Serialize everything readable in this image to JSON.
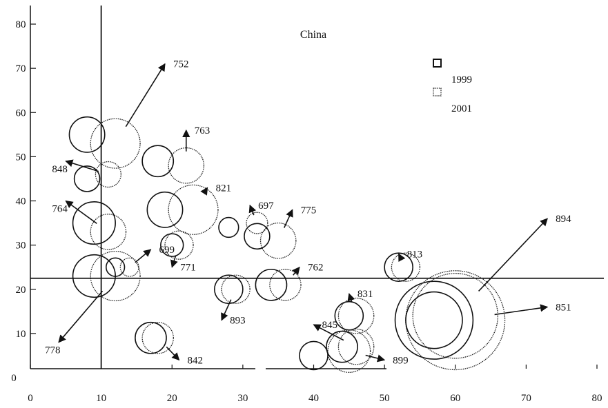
{
  "chart_data": {
    "type": "bubble",
    "title": "China",
    "xlabel": "",
    "ylabel": "",
    "xlim": [
      0,
      80
    ],
    "ylim": [
      0,
      80
    ],
    "xticks": [
      0,
      10,
      20,
      30,
      40,
      50,
      60,
      70,
      80
    ],
    "yticks": [
      10,
      20,
      30,
      40,
      50,
      60,
      70,
      80
    ],
    "y_origin_label": "0",
    "grid": false,
    "legend": {
      "placement": "top-right",
      "entries": [
        {
          "label": "1999",
          "style": "solid"
        },
        {
          "label": "2001",
          "style": "dotted"
        }
      ]
    },
    "reference_lines": {
      "x": 10,
      "y": 22.5
    },
    "series": [
      {
        "name": "1999",
        "style": "solid"
      },
      {
        "name": "2001",
        "style": "dotted"
      }
    ],
    "items": [
      {
        "label": "752",
        "x1999": 8,
        "y1999": 55,
        "r1999": 2.5,
        "x2001": 12,
        "y2001": 53,
        "r2001": 3.5,
        "arrow_to": [
          19,
          71
        ]
      },
      {
        "label": "763",
        "x1999": 18,
        "y1999": 49,
        "r1999": 2.2,
        "x2001": 22,
        "y2001": 48,
        "r2001": 2.5,
        "arrow_to": [
          22,
          56
        ]
      },
      {
        "label": "848",
        "x1999": 8,
        "y1999": 45,
        "r1999": 1.8,
        "x2001": 11,
        "y2001": 46,
        "r2001": 1.8,
        "arrow_to": [
          5,
          49
        ]
      },
      {
        "label": "821",
        "x1999": 19,
        "y1999": 38,
        "r1999": 2.5,
        "x2001": 23,
        "y2001": 38,
        "r2001": 3.5,
        "arrow_to": [
          25,
          43
        ]
      },
      {
        "label": "764",
        "x1999": 9,
        "y1999": 35,
        "r1999": 3.0,
        "x2001": 11,
        "y2001": 33,
        "r2001": 2.5,
        "arrow_to": [
          5,
          40
        ]
      },
      {
        "label": "697",
        "x1999": 28,
        "y1999": 34,
        "r1999": 1.4,
        "x2001": 32,
        "y2001": 35,
        "r2001": 1.5,
        "arrow_to": [
          31,
          39
        ]
      },
      {
        "label": "775",
        "x1999": 32,
        "y1999": 32,
        "r1999": 1.8,
        "x2001": 35,
        "y2001": 31,
        "r2001": 2.5,
        "arrow_to": [
          37,
          38
        ]
      },
      {
        "label": "771",
        "x1999": 20,
        "y1999": 30,
        "r1999": 1.6,
        "x2001": 21,
        "y2001": 30,
        "r2001": 2.0,
        "arrow_to": [
          20,
          25
        ]
      },
      {
        "label": "699",
        "x1999": 12,
        "y1999": 25,
        "r1999": 1.3,
        "x2001": 14,
        "y2001": 25,
        "r2001": 1.3,
        "arrow_to": [
          17,
          29
        ]
      },
      {
        "label": "778",
        "x1999": 9,
        "y1999": 23,
        "r1999": 3.0,
        "x2001": 12,
        "y2001": 23,
        "r2001": 3.5,
        "arrow_to": [
          4,
          8
        ]
      },
      {
        "label": "893",
        "x1999": 28,
        "y1999": 20,
        "r1999": 2.0,
        "x2001": 29,
        "y2001": 20,
        "r2001": 2.0,
        "arrow_to": [
          27,
          13
        ]
      },
      {
        "label": "762",
        "x1999": 34,
        "y1999": 21,
        "r1999": 2.2,
        "x2001": 36,
        "y2001": 21,
        "r2001": 2.2,
        "arrow_to": [
          38,
          25
        ]
      },
      {
        "label": "813",
        "x1999": 52,
        "y1999": 25,
        "r1999": 2.0,
        "x2001": 53,
        "y2001": 25,
        "r2001": 2.0,
        "arrow_to": [
          52,
          28
        ]
      },
      {
        "label": "831",
        "x1999": 45,
        "y1999": 14,
        "r1999": 2.0,
        "x2001": 46,
        "y2001": 14,
        "r2001": 2.5,
        "arrow_to": [
          45,
          19
        ]
      },
      {
        "label": "899",
        "x1999": 40,
        "y1999": 5,
        "r1999": 2.0,
        "x2001": 45,
        "y2001": 6,
        "r2001": 3.0,
        "arrow_to": [
          50,
          4
        ]
      },
      {
        "label": "845",
        "x1999": 44,
        "y1999": 7,
        "r1999": 2.2,
        "x2001": 46,
        "y2001": 7,
        "r2001": 2.5,
        "arrow_to": [
          40,
          12
        ]
      },
      {
        "label": "842",
        "x1999": 17,
        "y1999": 9,
        "r1999": 2.2,
        "x2001": 18,
        "y2001": 9,
        "r2001": 2.2,
        "arrow_to": [
          21,
          4
        ]
      },
      {
        "label": "851",
        "x1999": 57,
        "y1999": 13,
        "r1999": 5.5,
        "x2001": 60,
        "y2001": 13,
        "r2001": 7.0,
        "arrow_to": [
          73,
          16
        ]
      },
      {
        "label": "894",
        "x1999": 57,
        "y1999": 13,
        "r1999": 4.0,
        "x2001": 60,
        "y2001": 14,
        "r2001": 6.0,
        "arrow_to": [
          73,
          36
        ]
      }
    ]
  }
}
